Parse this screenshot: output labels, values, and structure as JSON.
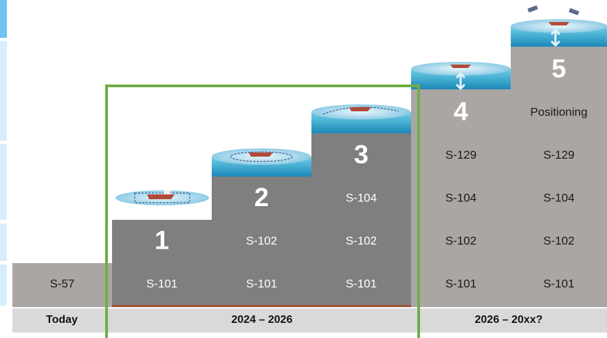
{
  "columns": [
    {
      "standards": [
        "S-57"
      ]
    },
    {
      "step": "1",
      "standards": [
        "S-101"
      ]
    },
    {
      "step": "2",
      "standards": [
        "S-102",
        "S-101"
      ]
    },
    {
      "step": "3",
      "standards": [
        "S-104",
        "S-102",
        "S-101"
      ]
    },
    {
      "step": "4",
      "standards": [
        "S-129",
        "S-104",
        "S-102",
        "S-101"
      ]
    },
    {
      "step": "5",
      "standards": [
        "Positioning",
        "S-129",
        "S-104",
        "S-102",
        "S-101"
      ]
    }
  ],
  "periods": [
    "Today",
    "2024 – 2026",
    "2026 – 20xx?"
  ]
}
